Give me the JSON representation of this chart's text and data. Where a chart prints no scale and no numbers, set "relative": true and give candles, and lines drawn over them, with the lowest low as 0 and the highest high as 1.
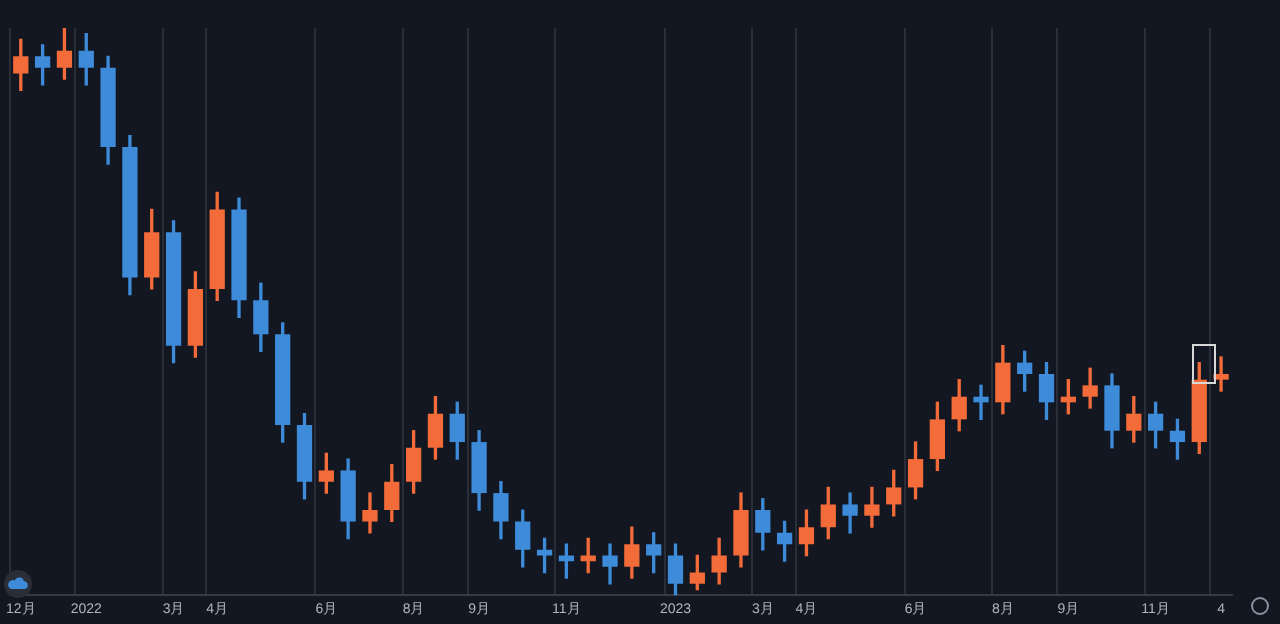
{
  "chart_data": {
    "type": "candlestick",
    "relative": true,
    "grid": "x",
    "categories": [
      "12月",
      null,
      null,
      "2022",
      null,
      null,
      null,
      "3月",
      null,
      "4月",
      null,
      null,
      null,
      null,
      "6月",
      null,
      null,
      null,
      "8月",
      null,
      null,
      "9月",
      null,
      null,
      null,
      "11月",
      null,
      null,
      null,
      null,
      "2023",
      null,
      null,
      null,
      "3月",
      null,
      "4月",
      null,
      null,
      null,
      null,
      "6月",
      null,
      null,
      null,
      "8月",
      null,
      null,
      "9月",
      null,
      null,
      null,
      "11月",
      null,
      null,
      "4"
    ],
    "ohlc": [
      [
        0.92,
        0.98,
        0.89,
        0.95
      ],
      [
        0.95,
        0.97,
        0.9,
        0.93
      ],
      [
        0.93,
        1.0,
        0.91,
        0.96
      ],
      [
        0.96,
        0.99,
        0.9,
        0.93
      ],
      [
        0.93,
        0.95,
        0.76,
        0.79
      ],
      [
        0.79,
        0.81,
        0.53,
        0.56
      ],
      [
        0.56,
        0.68,
        0.54,
        0.64
      ],
      [
        0.64,
        0.66,
        0.41,
        0.44
      ],
      [
        0.44,
        0.57,
        0.42,
        0.54
      ],
      [
        0.54,
        0.71,
        0.52,
        0.68
      ],
      [
        0.68,
        0.7,
        0.49,
        0.52
      ],
      [
        0.52,
        0.55,
        0.43,
        0.46
      ],
      [
        0.46,
        0.48,
        0.27,
        0.3
      ],
      [
        0.3,
        0.32,
        0.17,
        0.2
      ],
      [
        0.2,
        0.25,
        0.18,
        0.22
      ],
      [
        0.22,
        0.24,
        0.1,
        0.13
      ],
      [
        0.13,
        0.18,
        0.11,
        0.15
      ],
      [
        0.15,
        0.23,
        0.13,
        0.2
      ],
      [
        0.2,
        0.29,
        0.18,
        0.26
      ],
      [
        0.26,
        0.35,
        0.24,
        0.32
      ],
      [
        0.32,
        0.34,
        0.24,
        0.27
      ],
      [
        0.27,
        0.29,
        0.15,
        0.18
      ],
      [
        0.18,
        0.2,
        0.1,
        0.13
      ],
      [
        0.13,
        0.15,
        0.05,
        0.08
      ],
      [
        0.08,
        0.1,
        0.04,
        0.07
      ],
      [
        0.07,
        0.09,
        0.03,
        0.06
      ],
      [
        0.06,
        0.1,
        0.04,
        0.07
      ],
      [
        0.07,
        0.09,
        0.02,
        0.05
      ],
      [
        0.05,
        0.12,
        0.03,
        0.09
      ],
      [
        0.09,
        0.11,
        0.04,
        0.07
      ],
      [
        0.07,
        0.09,
        0.0,
        0.02
      ],
      [
        0.02,
        0.07,
        0.01,
        0.04
      ],
      [
        0.04,
        0.1,
        0.02,
        0.07
      ],
      [
        0.07,
        0.18,
        0.05,
        0.15
      ],
      [
        0.15,
        0.17,
        0.08,
        0.11
      ],
      [
        0.11,
        0.13,
        0.06,
        0.09
      ],
      [
        0.09,
        0.15,
        0.07,
        0.12
      ],
      [
        0.12,
        0.19,
        0.1,
        0.16
      ],
      [
        0.16,
        0.18,
        0.11,
        0.14
      ],
      [
        0.14,
        0.19,
        0.12,
        0.16
      ],
      [
        0.16,
        0.22,
        0.14,
        0.19
      ],
      [
        0.19,
        0.27,
        0.17,
        0.24
      ],
      [
        0.24,
        0.34,
        0.22,
        0.31
      ],
      [
        0.31,
        0.38,
        0.29,
        0.35
      ],
      [
        0.35,
        0.37,
        0.31,
        0.34
      ],
      [
        0.34,
        0.44,
        0.32,
        0.41
      ],
      [
        0.41,
        0.43,
        0.36,
        0.39
      ],
      [
        0.39,
        0.41,
        0.31,
        0.34
      ],
      [
        0.34,
        0.38,
        0.32,
        0.35
      ],
      [
        0.35,
        0.4,
        0.33,
        0.37
      ],
      [
        0.37,
        0.39,
        0.26,
        0.29
      ],
      [
        0.29,
        0.35,
        0.27,
        0.32
      ],
      [
        0.32,
        0.34,
        0.26,
        0.29
      ],
      [
        0.29,
        0.31,
        0.24,
        0.27
      ],
      [
        0.27,
        0.41,
        0.25,
        0.38
      ],
      [
        0.38,
        0.42,
        0.36,
        0.39
      ]
    ],
    "colors": [
      "#f26b38",
      "#3d8bd9",
      "#f26b38",
      "#3d8bd9",
      "#3d8bd9",
      "#3d8bd9",
      "#f26b38",
      "#3d8bd9",
      "#f26b38",
      "#f26b38",
      "#3d8bd9",
      "#3d8bd9",
      "#3d8bd9",
      "#3d8bd9",
      "#f26b38",
      "#3d8bd9",
      "#f26b38",
      "#f26b38",
      "#f26b38",
      "#f26b38",
      "#3d8bd9",
      "#3d8bd9",
      "#3d8bd9",
      "#3d8bd9",
      "#3d8bd9",
      "#3d8bd9",
      "#f26b38",
      "#3d8bd9",
      "#f26b38",
      "#3d8bd9",
      "#3d8bd9",
      "#f26b38",
      "#f26b38",
      "#f26b38",
      "#3d8bd9",
      "#3d8bd9",
      "#f26b38",
      "#f26b38",
      "#3d8bd9",
      "#f26b38",
      "#f26b38",
      "#f26b38",
      "#f26b38",
      "#f26b38",
      "#3d8bd9",
      "#f26b38",
      "#3d8bd9",
      "#3d8bd9",
      "#f26b38",
      "#f26b38",
      "#3d8bd9",
      "#f26b38",
      "#3d8bd9",
      "#3d8bd9",
      "#f26b38",
      "#f26b38"
    ]
  }
}
